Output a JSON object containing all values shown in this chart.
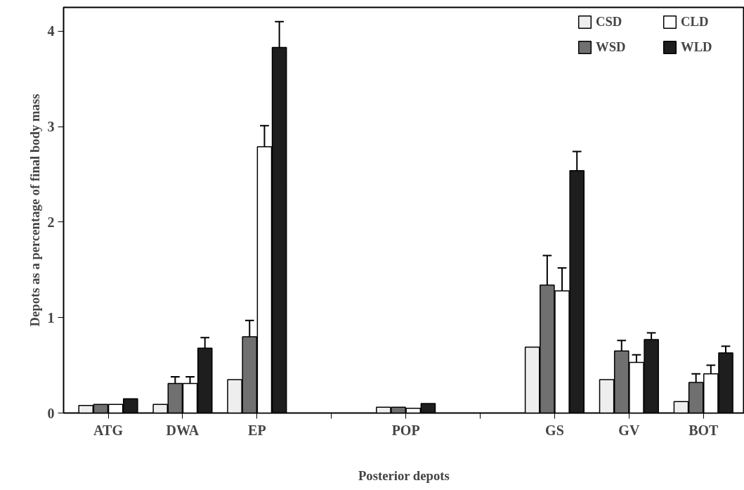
{
  "chart_data": {
    "type": "bar",
    "xlabel": "Posterior depots",
    "ylabel": "Depots as a percentage of final body mass",
    "categories": [
      "ATG",
      "DWA",
      "EP",
      null,
      "POP",
      null,
      "GS",
      "GV",
      "BOT"
    ],
    "series": [
      {
        "name": "CSD",
        "color": "#eeeeee",
        "values": [
          0.08,
          0.09,
          0.35,
          null,
          0.06,
          null,
          0.69,
          0.35,
          0.12
        ],
        "errors": [
          null,
          null,
          null,
          null,
          null,
          null,
          null,
          null,
          null
        ]
      },
      {
        "name": "WSD",
        "color": "#707070",
        "values": [
          0.09,
          0.31,
          0.8,
          null,
          0.06,
          null,
          1.34,
          0.65,
          0.32
        ],
        "errors": [
          null,
          0.07,
          0.17,
          null,
          null,
          null,
          0.31,
          0.11,
          0.09
        ]
      },
      {
        "name": "CLD",
        "color": "#ffffff",
        "values": [
          0.09,
          0.31,
          2.79,
          null,
          0.05,
          null,
          1.28,
          0.53,
          0.41
        ],
        "errors": [
          null,
          0.07,
          0.22,
          null,
          null,
          null,
          0.24,
          0.08,
          0.09
        ]
      },
      {
        "name": "WLD",
        "color": "#1e1e1e",
        "values": [
          0.15,
          0.68,
          3.83,
          null,
          0.1,
          null,
          2.54,
          0.77,
          0.63
        ],
        "errors": [
          null,
          0.11,
          0.27,
          null,
          null,
          null,
          0.2,
          0.07,
          0.07
        ]
      }
    ],
    "ylim": [
      0,
      4.25
    ],
    "yticks": [
      0,
      1,
      2,
      3,
      4
    ],
    "grid": false,
    "legend": "top right"
  }
}
